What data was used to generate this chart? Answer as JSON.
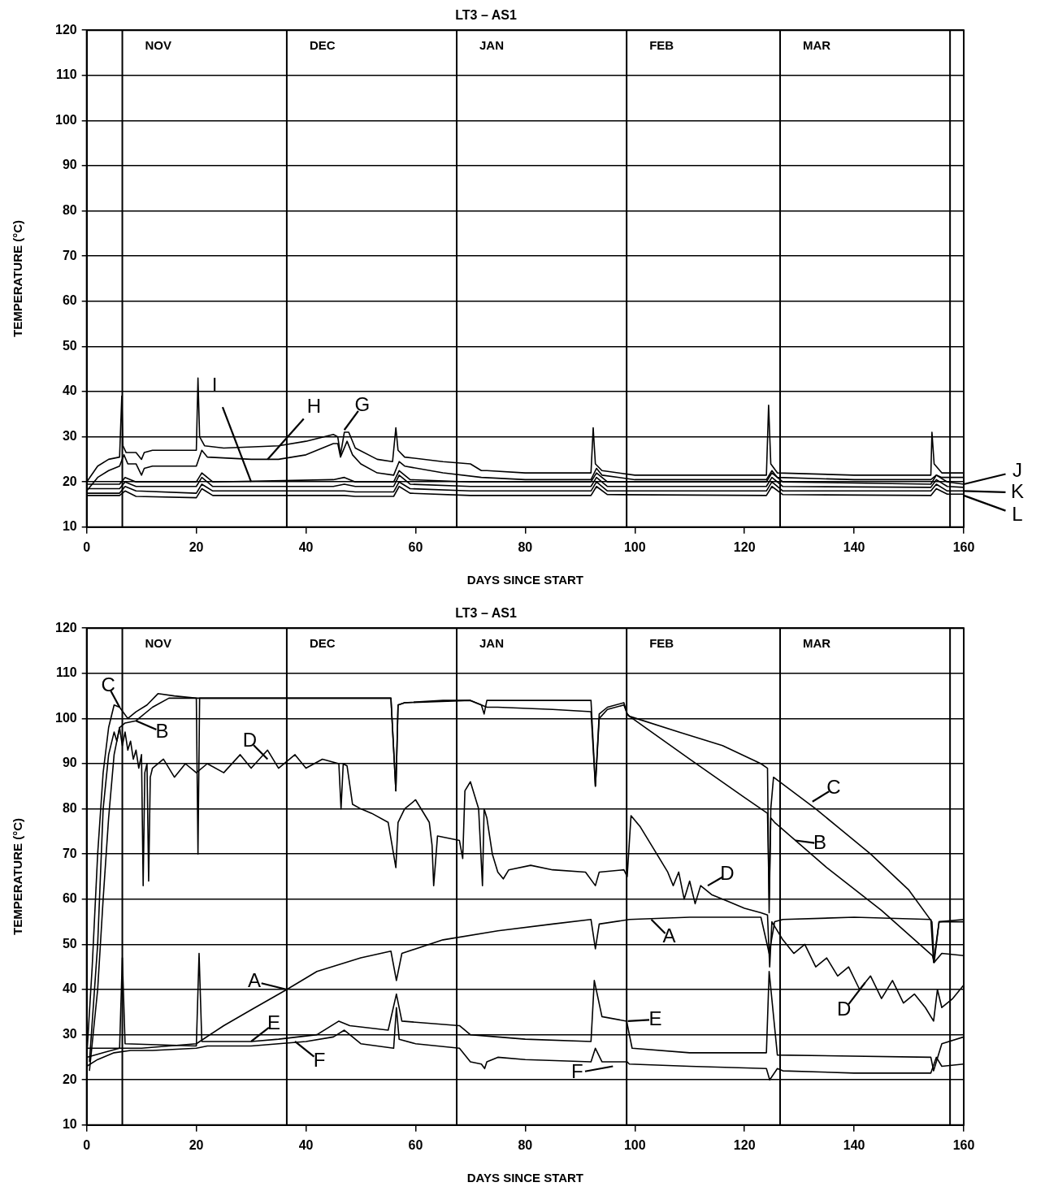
{
  "chart_data": [
    {
      "type": "line",
      "title": "LT3 – AS1",
      "xlabel": "DAYS SINCE START",
      "ylabel": "TEMPERATURE (°C)",
      "xlim": [
        0,
        160
      ],
      "ylim": [
        10,
        120
      ],
      "xticks": [
        0,
        20,
        40,
        60,
        80,
        100,
        120,
        140,
        160
      ],
      "yticks": [
        10,
        20,
        30,
        40,
        50,
        60,
        70,
        80,
        90,
        100,
        110,
        120
      ],
      "grid": "y",
      "marker": "none",
      "ref_lines": [
        {
          "axis": "x",
          "value": 6.5,
          "label": "NOV"
        },
        {
          "axis": "x",
          "value": 36.5,
          "label": "DEC"
        },
        {
          "axis": "x",
          "value": 67.5,
          "label": "JAN"
        },
        {
          "axis": "x",
          "value": 98.5,
          "label": "FEB"
        },
        {
          "axis": "x",
          "value": 126.5,
          "label": "MAR"
        },
        {
          "axis": "x",
          "value": 157.5
        }
      ],
      "annotations": [
        {
          "text": "I",
          "x": 30,
          "y": 20
        },
        {
          "text": "H",
          "x": 33,
          "y": 25
        },
        {
          "text": "G",
          "x": 47,
          "y": 31.5
        },
        {
          "text": "J",
          "x": 160,
          "y": 19.5
        },
        {
          "text": "K",
          "x": 160,
          "y": 18
        },
        {
          "text": "L",
          "x": 160,
          "y": 17
        }
      ],
      "series": [
        {
          "color": "#000000",
          "x": [
            0,
            2,
            4,
            6,
            6.4,
            6.6,
            7.2,
            9,
            10,
            10.5,
            12,
            20,
            20.3,
            20.6,
            21.5,
            25,
            35,
            40,
            45,
            45.8,
            46.3,
            47,
            47.8,
            49,
            53,
            55.8,
            56.4,
            56.8,
            58,
            65,
            70,
            72,
            73,
            80,
            92,
            92.4,
            92.8,
            94,
            100,
            124,
            124.4,
            124.8,
            126,
            140,
            154,
            154.2,
            154.6,
            156,
            160
          ],
          "values": [
            20,
            23.5,
            25,
            25.5,
            39,
            28,
            26.5,
            26.5,
            25,
            26.5,
            27,
            27,
            43,
            30,
            28,
            27.5,
            28,
            29,
            30.5,
            30,
            26,
            31,
            31,
            27.5,
            25,
            24.5,
            32,
            27,
            25.5,
            24.5,
            24,
            22.5,
            22.5,
            22,
            22,
            32,
            24,
            22.5,
            21.5,
            21.5,
            37,
            24,
            22,
            21.5,
            21.5,
            31,
            24,
            22,
            22
          ]
        },
        {
          "color": "#000000",
          "x": [
            0,
            2,
            4,
            6,
            6.8,
            7.5,
            9,
            10,
            10.5,
            12,
            20,
            21,
            22,
            30,
            35,
            40,
            45,
            45.8,
            46.3,
            47.5,
            48.5,
            50,
            53,
            56,
            57,
            58,
            65,
            72,
            80,
            92,
            93,
            94,
            100,
            124,
            125,
            126,
            140,
            154,
            155,
            156,
            160
          ],
          "values": [
            18,
            21,
            22.5,
            23.5,
            26,
            24,
            24,
            21.5,
            23,
            23.5,
            23.5,
            27,
            25.5,
            25,
            25,
            26,
            28.5,
            28.5,
            25.5,
            29,
            26,
            24,
            22,
            21.5,
            24.5,
            23.5,
            22,
            21,
            20.5,
            20.5,
            23,
            21.5,
            20.5,
            20.5,
            22.5,
            21,
            20.5,
            20.5,
            21.5,
            21,
            21
          ]
        },
        {
          "color": "#000000",
          "x": [
            0,
            6,
            7,
            9,
            20,
            21,
            23,
            45,
            47,
            49,
            56,
            57,
            59,
            70,
            92,
            93,
            95,
            124,
            125,
            127,
            154,
            155,
            157,
            160
          ],
          "values": [
            19.5,
            19.5,
            21,
            20,
            20,
            22,
            20,
            20.5,
            21,
            20,
            20,
            22.5,
            20.5,
            20,
            20,
            22,
            20,
            20,
            22,
            20,
            19.5,
            21.5,
            20,
            19.5
          ]
        },
        {
          "color": "#000000",
          "x": [
            0,
            6,
            7,
            9,
            20,
            21,
            23,
            45,
            47,
            49,
            56,
            57,
            59,
            70,
            92,
            93,
            95,
            124,
            125,
            127,
            154,
            155,
            157,
            160
          ],
          "values": [
            18.5,
            18.5,
            20,
            19,
            19,
            21,
            19,
            19,
            19.5,
            19,
            19,
            21.5,
            19.5,
            19,
            19,
            21,
            19,
            19,
            21,
            19,
            18.8,
            20.5,
            19,
            18.8
          ]
        },
        {
          "color": "#000000",
          "x": [
            0,
            6,
            7,
            9,
            20,
            21,
            23,
            45,
            47,
            49,
            56,
            57,
            59,
            70,
            92,
            93,
            95,
            124,
            125,
            127,
            154,
            155,
            157,
            160
          ],
          "values": [
            17.5,
            17.5,
            19,
            18,
            17.5,
            19.5,
            18,
            18,
            18,
            17.8,
            17.8,
            20,
            18.5,
            18,
            18,
            20,
            18,
            18,
            20,
            18,
            18,
            19.5,
            18,
            18
          ]
        },
        {
          "color": "#000000",
          "x": [
            0,
            6,
            7,
            9,
            20,
            21,
            23,
            45,
            47,
            49,
            56,
            57,
            59,
            70,
            92,
            93,
            95,
            124,
            125,
            127,
            154,
            155,
            157,
            160
          ],
          "values": [
            17,
            17,
            18,
            16.8,
            16.5,
            18.5,
            17,
            17,
            17,
            16.8,
            16.8,
            19,
            17.5,
            17,
            17,
            19,
            17.2,
            17,
            19,
            17.2,
            17,
            18.5,
            17.3,
            17.3
          ]
        }
      ]
    },
    {
      "type": "line",
      "title": "LT3 – AS1",
      "xlabel": "DAYS SINCE START",
      "ylabel": "TEMPERATURE (°C)",
      "xlim": [
        0,
        160
      ],
      "ylim": [
        10,
        120
      ],
      "xticks": [
        0,
        20,
        40,
        60,
        80,
        100,
        120,
        140,
        160
      ],
      "yticks": [
        10,
        20,
        30,
        40,
        50,
        60,
        70,
        80,
        90,
        100,
        110,
        120
      ],
      "grid": "y",
      "marker": "none",
      "ref_lines": [
        {
          "axis": "x",
          "value": 6.5,
          "label": "NOV"
        },
        {
          "axis": "x",
          "value": 36.5,
          "label": "DEC"
        },
        {
          "axis": "x",
          "value": 67.5,
          "label": "JAN"
        },
        {
          "axis": "x",
          "value": 98.5,
          "label": "FEB"
        },
        {
          "axis": "x",
          "value": 126.5,
          "label": "MAR"
        },
        {
          "axis": "x",
          "value": 157.5
        }
      ],
      "annotations": [
        {
          "text": "C",
          "x": 6,
          "y": 102.5
        },
        {
          "text": "B",
          "x": 9,
          "y": 99.5
        },
        {
          "text": "D",
          "x": 33,
          "y": 91
        },
        {
          "text": "A",
          "x": 36.5,
          "y": 40
        },
        {
          "text": "E",
          "x": 30,
          "y": 28.5
        },
        {
          "text": "F",
          "x": 38,
          "y": 28.5
        },
        {
          "text": "C",
          "x": 132.4,
          "y": 81.6
        },
        {
          "text": "B",
          "x": 129.3,
          "y": 73
        },
        {
          "text": "D",
          "x": 113.3,
          "y": 63
        },
        {
          "text": "A",
          "x": 103,
          "y": 55.5
        },
        {
          "text": "E",
          "x": 98.7,
          "y": 33
        },
        {
          "text": "F",
          "x": 96,
          "y": 23
        },
        {
          "text": "D",
          "x": 142,
          "y": 41.5
        }
      ],
      "series": [
        {
          "color": "#000000",
          "x": [
            0,
            3,
            6,
            10,
            15,
            20,
            25,
            30,
            36.5,
            42,
            50,
            55.5,
            56.5,
            57.5,
            65,
            75,
            85,
            92,
            92.8,
            93.5,
            99,
            110,
            123,
            124.5,
            125.5,
            127,
            140,
            154,
            154.5,
            155.5,
            160
          ],
          "values": [
            25,
            26,
            27,
            27,
            27.5,
            28,
            32,
            35.5,
            40,
            44,
            47,
            48.5,
            42,
            48,
            51,
            53,
            54.5,
            55.5,
            49,
            54.5,
            55.5,
            56,
            56,
            48,
            55,
            55.5,
            56,
            55.5,
            46,
            55,
            55.5
          ]
        },
        {
          "color": "#000000",
          "x": [
            0.5,
            2,
            3,
            4,
            5,
            6,
            7,
            9,
            12,
            15,
            20,
            20.3,
            20.6,
            22,
            40,
            55.5,
            56.4,
            56.8,
            58,
            70,
            72,
            73,
            75,
            85,
            92,
            92.8,
            93.5,
            95,
            98,
            98.6,
            99,
            110,
            120,
            124.2,
            124.5,
            124.8,
            125.5,
            135,
            145,
            154.3,
            154.6,
            156,
            160
          ],
          "values": [
            22,
            40,
            60,
            78,
            92,
            98,
            99,
            99.5,
            102.5,
            104.5,
            104.5,
            70,
            104.5,
            104.5,
            104.5,
            104.5,
            84,
            103,
            103.5,
            104,
            103,
            102.5,
            102.5,
            102,
            101.5,
            85,
            100,
            102,
            103,
            101,
            100.5,
            91,
            82.5,
            79,
            60,
            78,
            77,
            67,
            57.5,
            47.5,
            46,
            48,
            47.5
          ]
        },
        {
          "color": "#000000",
          "x": [
            0,
            1,
            2,
            3,
            4,
            5,
            6,
            7.5,
            9,
            11,
            13,
            16,
            20,
            30,
            40,
            50,
            55.5,
            56.4,
            56.8,
            58,
            65,
            70,
            72,
            72.5,
            73,
            80,
            92,
            92.8,
            93.5,
            95,
            98,
            98.6,
            99,
            108,
            116,
            123,
            124.2,
            124.5,
            124.8,
            125.3,
            133,
            143,
            150,
            154.2,
            154.6,
            155.5,
            157,
            160
          ],
          "values": [
            25,
            45,
            70,
            88,
            98,
            103,
            102.5,
            100,
            101.5,
            103,
            105.5,
            105,
            104.5,
            104.5,
            104.5,
            104.5,
            104.5,
            84,
            103,
            103.5,
            104,
            104,
            103,
            101,
            104,
            104,
            104,
            85,
            101,
            102.5,
            103.5,
            101,
            100.5,
            97,
            94,
            90,
            89,
            57,
            80,
            87,
            80,
            70,
            62,
            55,
            46,
            55,
            55,
            55
          ]
        },
        {
          "color": "#000000",
          "x": [
            0.5,
            2,
            3,
            4,
            5,
            5.5,
            6,
            6.5,
            7,
            7.5,
            8,
            8.5,
            9,
            9.5,
            10,
            10.3,
            10.6,
            11,
            11.3,
            11.6,
            12,
            14,
            16,
            18,
            20,
            22,
            25,
            28,
            30,
            33,
            35,
            38,
            40,
            43,
            46,
            46.4,
            46.8,
            47.5,
            48.5,
            50,
            52,
            55,
            56.4,
            56.8,
            58,
            60,
            62.5,
            63,
            63.3,
            64,
            66,
            68,
            68.6,
            69,
            70,
            71.5,
            72.2,
            72.5,
            73,
            74,
            75,
            76,
            77,
            81,
            85,
            91,
            92.8,
            93.5,
            98,
            98.6,
            99.3,
            101,
            104,
            106,
            107,
            108,
            109,
            110,
            111,
            112,
            114,
            117,
            120,
            123,
            124.2,
            124.6,
            125,
            127,
            129,
            131,
            133,
            135,
            137,
            139,
            141,
            143,
            145,
            147,
            149,
            151,
            153,
            154.5,
            155.2,
            156,
            158,
            160
          ],
          "values": [
            24,
            50,
            80,
            92,
            97,
            95,
            98,
            94,
            97,
            93,
            95,
            91,
            93,
            89,
            92,
            63,
            88,
            90,
            64,
            87,
            89,
            91,
            87,
            90,
            88,
            90,
            88,
            92,
            89,
            93,
            89,
            92,
            89,
            91,
            90,
            80,
            90,
            89.5,
            81,
            80,
            79,
            77,
            67,
            77,
            80,
            82,
            77,
            72,
            63,
            74,
            73.5,
            73,
            69,
            84,
            86,
            80,
            63,
            80,
            78,
            70,
            66,
            64.5,
            66.5,
            67.5,
            66.5,
            66,
            63,
            66,
            66.5,
            65,
            78.5,
            76,
            70,
            66,
            63,
            66,
            60,
            64,
            59,
            63,
            61,
            59.5,
            58,
            57,
            56.5,
            45,
            55,
            51,
            48,
            50,
            45,
            47,
            43,
            45,
            40,
            43,
            38,
            42,
            37,
            39,
            36,
            33,
            40,
            36,
            38,
            41
          ]
        },
        {
          "color": "#000000",
          "x": [
            0,
            6,
            6.5,
            7,
            20,
            20.5,
            21,
            30,
            35,
            42,
            46,
            48,
            55,
            56.5,
            57.5,
            68,
            70,
            80,
            92,
            92.6,
            94,
            98.5,
            99.5,
            110,
            124,
            124.5,
            126,
            154,
            154.5,
            156,
            160
          ],
          "values": [
            27,
            27,
            47,
            28,
            27.5,
            48,
            28.5,
            28.5,
            29,
            30,
            33,
            32,
            31,
            39,
            33,
            32,
            30,
            29,
            28.5,
            42,
            34,
            33,
            27,
            26,
            26,
            44,
            25.5,
            25,
            22,
            28,
            29.5
          ]
        },
        {
          "color": "#000000",
          "x": [
            0,
            2,
            5,
            8,
            12,
            20,
            22,
            30,
            35,
            40,
            45,
            47,
            50,
            56,
            56.5,
            57,
            60,
            68,
            70,
            72,
            72.6,
            73,
            75,
            80,
            92,
            92.8,
            94,
            98.6,
            99,
            110,
            124,
            124.6,
            126,
            127,
            140,
            154,
            155,
            156,
            160
          ],
          "values": [
            23,
            24.5,
            26,
            26.5,
            26.5,
            27,
            27.5,
            27.5,
            28,
            28.5,
            29.5,
            31,
            28,
            27,
            36,
            29,
            28,
            27,
            24,
            23.5,
            22.5,
            24,
            25,
            24.5,
            24,
            27,
            24,
            24,
            23.5,
            23,
            22.5,
            20,
            22.5,
            22,
            21.5,
            21.5,
            25,
            23,
            23.5
          ]
        }
      ]
    }
  ]
}
